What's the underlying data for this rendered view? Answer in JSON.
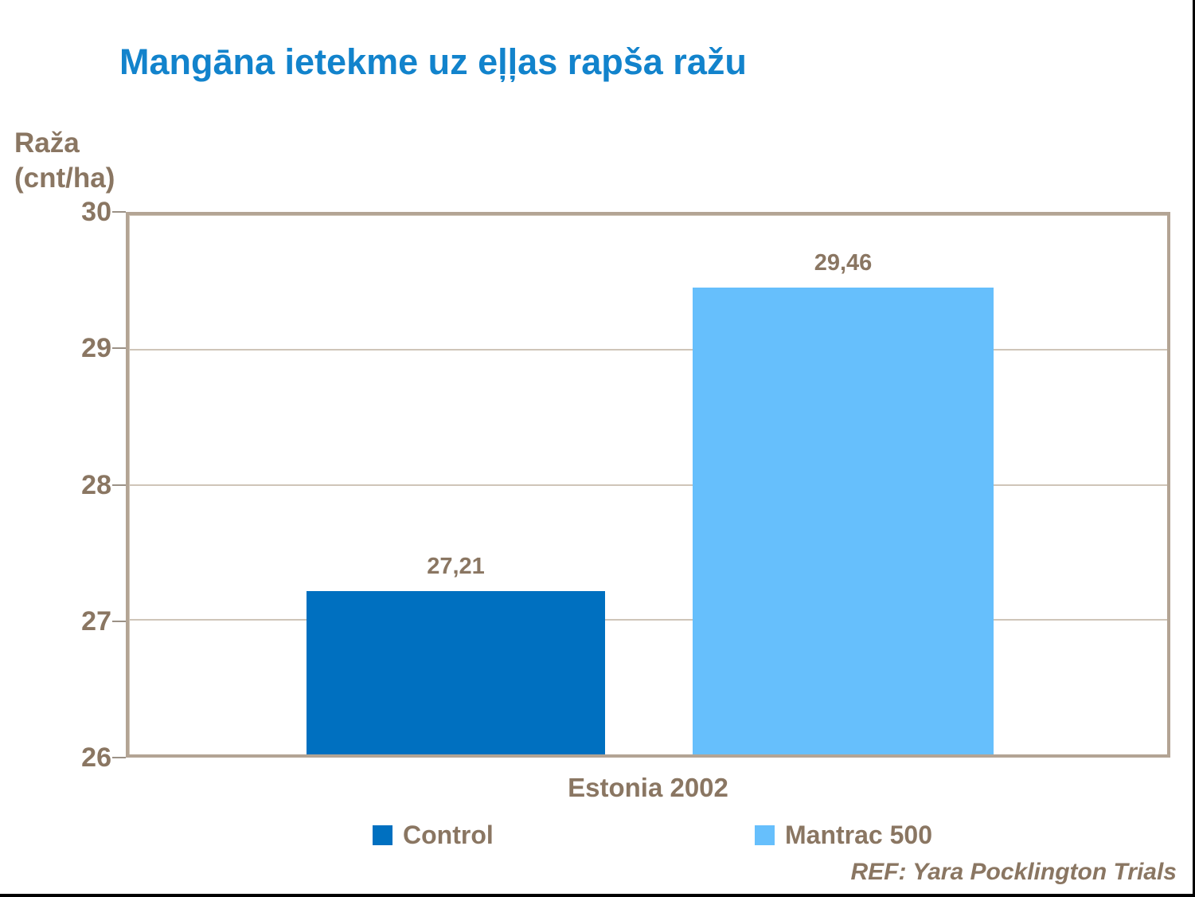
{
  "slide": {
    "footer_ref": "REF: Yara Pocklington Trials"
  },
  "colors": {
    "title_blue": "#1283CC",
    "text_brown": "#8A7662",
    "plot_border_tan": "#B3A494",
    "gridline_tan": "#CFC5B8",
    "control_bar": "#0070C0",
    "mantrac_bar": "#66BFFC",
    "edge_border_black": "#000000"
  },
  "chart_data": {
    "type": "bar",
    "title": "Mangāna ietekme uz eļļas rapša ražu",
    "ylabel": "Raža (cnt/ha)",
    "ylabel_lines": [
      "Raža",
      "(cnt/ha)"
    ],
    "categories": [
      "Estonia 2002"
    ],
    "series": [
      {
        "name": "Control",
        "values": [
          27.21
        ],
        "label": "27,21",
        "color": "#0070C0"
      },
      {
        "name": "Mantrac 500",
        "values": [
          29.46
        ],
        "label": "29,46",
        "color": "#66BFFC"
      }
    ],
    "ylim": [
      26,
      30
    ],
    "yticks": [
      "30",
      "29",
      "28",
      "27",
      "26"
    ],
    "grid": true,
    "legend_position": "bottom"
  }
}
